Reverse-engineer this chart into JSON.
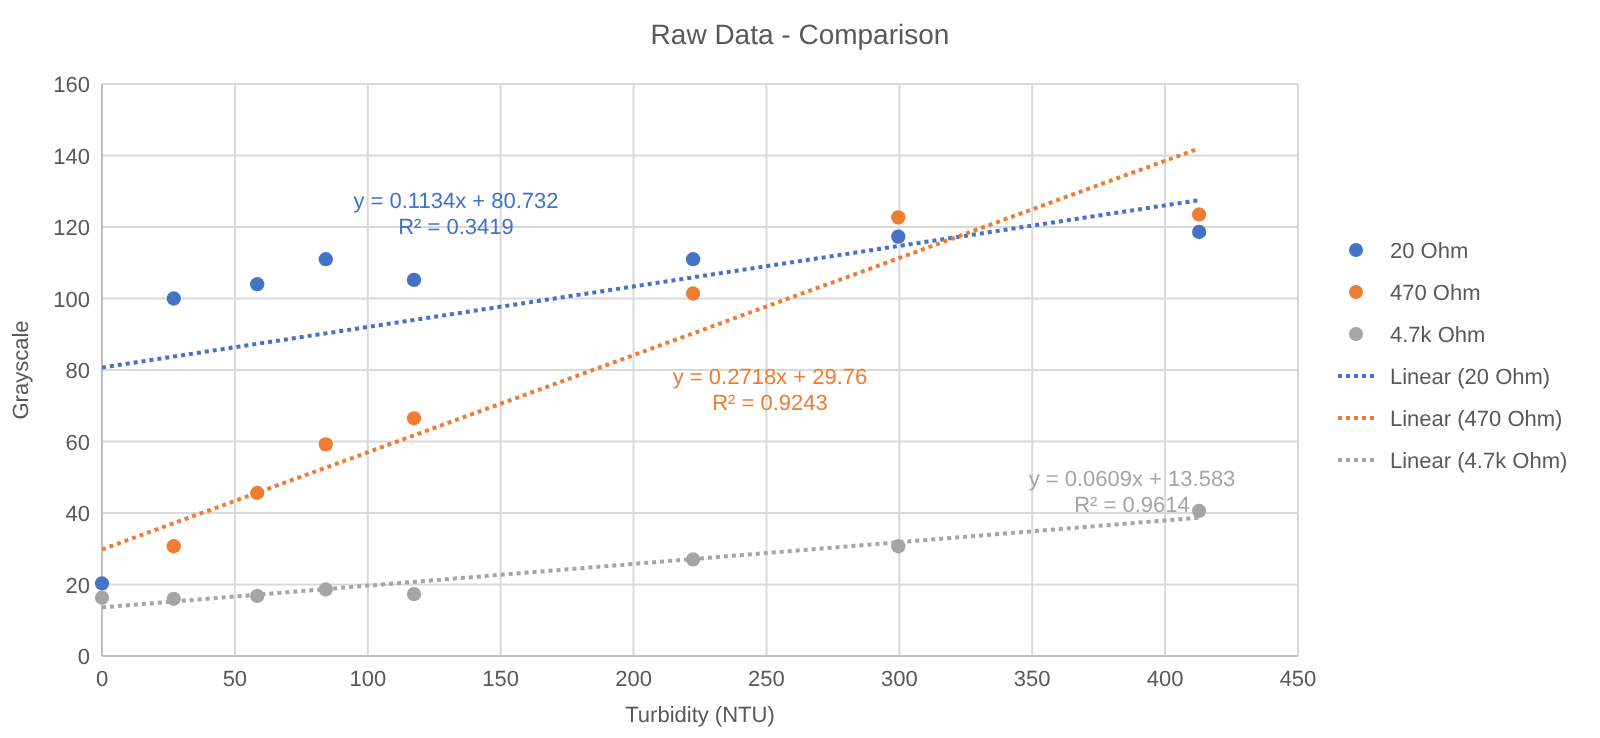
{
  "chart_data": {
    "type": "scatter",
    "title": "Raw Data - Comparison",
    "xlabel": "Turbidity (NTU)",
    "ylabel": "Grayscale",
    "xlim": [
      0,
      450
    ],
    "xticks": [
      0,
      50,
      100,
      150,
      200,
      250,
      300,
      350,
      400,
      450
    ],
    "ylim": [
      0,
      160
    ],
    "yticks": [
      0,
      20,
      40,
      60,
      80,
      100,
      120,
      140,
      160
    ],
    "grid": true,
    "legend": "right",
    "marker": "circle",
    "series": [
      {
        "name": "20 Ohm",
        "color": "#4472c4",
        "x": [
          0,
          27,
          58.4,
          84.2,
          117.4,
          222.4,
          299.6,
          412.8
        ],
        "values": [
          20.3,
          100,
          104,
          111,
          105.2,
          111,
          117.3,
          118.6
        ]
      },
      {
        "name": "470 Ohm",
        "color": "#ed7d31",
        "x": [
          27,
          58.4,
          84.2,
          117.4,
          222.4,
          299.6,
          412.8
        ],
        "values": [
          30.7,
          45.6,
          59.2,
          66.5,
          101.4,
          122.7,
          123.5
        ]
      },
      {
        "name": "4.7k Ohm",
        "color": "#a5a5a5",
        "x": [
          0,
          27,
          58.4,
          84.2,
          117.4,
          222.4,
          299.6,
          412.8
        ],
        "values": [
          16.3,
          16,
          16.8,
          18.6,
          17.3,
          27,
          30.7,
          40.6
        ]
      },
      {
        "name": "Linear (20 Ohm)",
        "type": "line",
        "line_style": "dotted",
        "marker": "none",
        "color": "#4472c4",
        "x": [
          0,
          412.8
        ],
        "values": [
          80.7,
          127.5
        ]
      },
      {
        "name": "Linear (470 Ohm)",
        "type": "line",
        "line_style": "dotted",
        "marker": "none",
        "color": "#ed7d31",
        "x": [
          0,
          412.8
        ],
        "values": [
          29.8,
          142
        ]
      },
      {
        "name": "Linear (4.7k Ohm)",
        "type": "line",
        "line_style": "dotted",
        "marker": "none",
        "color": "#a5a5a5",
        "x": [
          0,
          412.8
        ],
        "values": [
          13.6,
          38.7
        ]
      }
    ],
    "annotations": [
      "y = 0.1134x + 80.732",
      "R² = 0.3419",
      "y = 0.2718x + 29.76",
      "R² = 0.9243",
      "y = 0.0609x + 13.583",
      "R² = 0.9614"
    ]
  }
}
